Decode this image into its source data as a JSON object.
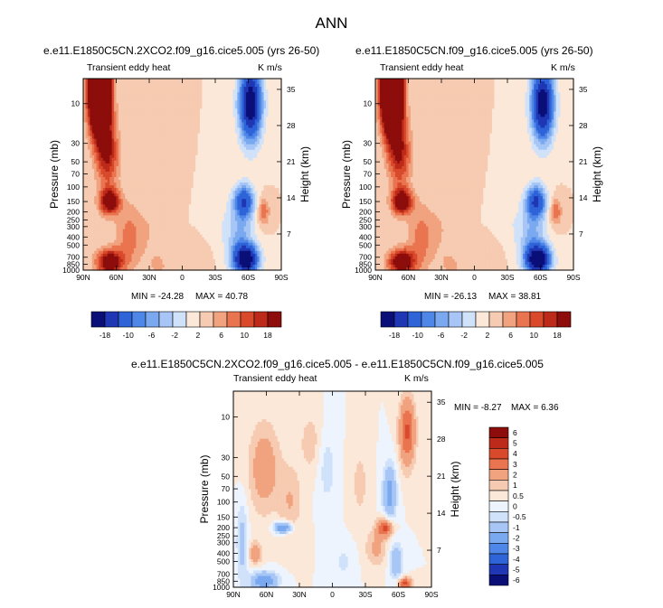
{
  "suptitle": "ANN",
  "colors": {
    "main": [
      "#0a0f78",
      "#1f37b4",
      "#2f63d8",
      "#4f87e8",
      "#7aa9f0",
      "#a7c6f5",
      "#d0e2fa",
      "#fbe8d8",
      "#f6cbb1",
      "#f1a27f",
      "#ea744f",
      "#d94a2c",
      "#bd2a19",
      "#8c0d0b"
    ],
    "diff": [
      "#0a0f78",
      "#1f37b4",
      "#2f63d8",
      "#4f87e8",
      "#7aa9f0",
      "#a7c6f5",
      "#d0e2fa",
      "#eef4fd",
      "#fbe8d8",
      "#f6cbb1",
      "#f1a27f",
      "#ea744f",
      "#d94a2c",
      "#bd2a19",
      "#8c0d0b"
    ]
  },
  "panels": [
    {
      "title": "e.e11.E1850C5CN.2XCO2.f09_g16.cice5.005 (yrs 26-50)",
      "left_label": "Transient eddy heat",
      "right_label": "K m/s",
      "min_label": "MIN = -24.28",
      "max_label": "MAX = 40.78"
    },
    {
      "title": "e.e11.E1850C5CN.f09_g16.cice5.005 (yrs 26-50)",
      "left_label": "Transient eddy heat",
      "right_label": "K m/s",
      "min_label": "MIN = -26.13",
      "max_label": "MAX = 38.81"
    },
    {
      "title": "e.e11.E1850C5CN.2XCO2.f09_g16.cice5.005 - e.e11.E1850C5CN.f09_g16.cice5.005",
      "left_label": "Transient eddy heat",
      "right_label": "K m/s",
      "min_label": "MIN = -8.27",
      "max_label": "MAX =  6.36"
    }
  ],
  "chart_data": [
    {
      "type": "heatmap",
      "title": "e.e11.E1850C5CN.2XCO2.f09_g16.cice5.005 (yrs 26-50)",
      "variable": "Transient eddy heat",
      "units": "K m/s",
      "xlabel": "",
      "ylabel": "Pressure (mb)",
      "ylabel_right": "Height (km)",
      "x_ticks": [
        "90N",
        "60N",
        "30N",
        "0",
        "30S",
        "60S",
        "90S"
      ],
      "y_ticks": [
        "10",
        "30",
        "50",
        "70",
        "100",
        "150",
        "200",
        "250",
        "300",
        "400",
        "500",
        "700",
        "850",
        "1000"
      ],
      "y_ticks_right": [
        "35",
        "28",
        "21",
        "14",
        "7"
      ],
      "ylim": [
        1000,
        5
      ],
      "min": -24.28,
      "max": 40.78,
      "colorbar_labels": [
        "-18",
        "-10",
        "-6",
        "-2",
        "2",
        "6",
        "10",
        "18"
      ],
      "features": [
        {
          "lat": 72,
          "p": 8,
          "value": 40
        },
        {
          "lat": 67,
          "p": 150,
          "value": 18
        },
        {
          "lat": 67,
          "p": 800,
          "value": 16
        },
        {
          "lat": -60,
          "p": 10,
          "value": -24
        },
        {
          "lat": -55,
          "p": 150,
          "value": -14
        },
        {
          "lat": -57,
          "p": 750,
          "value": -24
        },
        {
          "lat": -72,
          "p": 200,
          "value": 4
        }
      ]
    },
    {
      "type": "heatmap",
      "title": "e.e11.E1850C5CN.f09_g16.cice5.005 (yrs 26-50)",
      "variable": "Transient eddy heat",
      "units": "K m/s",
      "xlabel": "",
      "ylabel": "Pressure (mb)",
      "ylabel_right": "Height (km)",
      "x_ticks": [
        "90N",
        "60N",
        "30N",
        "0",
        "30S",
        "60S",
        "90S"
      ],
      "y_ticks": [
        "10",
        "30",
        "50",
        "70",
        "100",
        "150",
        "200",
        "250",
        "300",
        "400",
        "500",
        "700",
        "850",
        "1000"
      ],
      "y_ticks_right": [
        "35",
        "28",
        "21",
        "14",
        "7"
      ],
      "ylim": [
        1000,
        5
      ],
      "min": -26.13,
      "max": 38.81,
      "colorbar_labels": [
        "-18",
        "-10",
        "-6",
        "-2",
        "2",
        "6",
        "10",
        "18"
      ],
      "features": [
        {
          "lat": 72,
          "p": 8,
          "value": 38
        },
        {
          "lat": 67,
          "p": 150,
          "value": 16
        },
        {
          "lat": 67,
          "p": 800,
          "value": 15
        },
        {
          "lat": -60,
          "p": 10,
          "value": -26
        },
        {
          "lat": -55,
          "p": 150,
          "value": -15
        },
        {
          "lat": -57,
          "p": 750,
          "value": -25
        },
        {
          "lat": -72,
          "p": 200,
          "value": 4
        }
      ]
    },
    {
      "type": "heatmap",
      "title": "e.e11.E1850C5CN.2XCO2.f09_g16.cice5.005 - e.e11.E1850C5CN.f09_g16.cice5.005",
      "variable": "Transient eddy heat",
      "units": "K m/s",
      "xlabel": "",
      "ylabel": "Pressure (mb)",
      "ylabel_right": "Height (km)",
      "x_ticks": [
        "90N",
        "60N",
        "30N",
        "0",
        "30S",
        "60S",
        "90S"
      ],
      "y_ticks": [
        "10",
        "30",
        "50",
        "70",
        "100",
        "150",
        "200",
        "250",
        "300",
        "400",
        "500",
        "700",
        "850",
        "1000"
      ],
      "y_ticks_right": [
        "35",
        "28",
        "21",
        "14",
        "7"
      ],
      "ylim": [
        1000,
        5
      ],
      "min": -8.27,
      "max": 6.36,
      "colorbar_labels": [
        "6",
        "5",
        "4",
        "3",
        "2",
        "1",
        "0.5",
        "0",
        "-0.5",
        "-1",
        "-2",
        "-3",
        "-4",
        "-5",
        "-6"
      ],
      "features": [
        {
          "lat": 60,
          "p": 40,
          "value": 2
        },
        {
          "lat": 45,
          "p": 150,
          "value": 1
        },
        {
          "lat": -70,
          "p": 15,
          "value": 3
        },
        {
          "lat": -45,
          "p": 200,
          "value": 3
        },
        {
          "lat": -65,
          "p": 900,
          "value": 3
        },
        {
          "lat": -52,
          "p": 100,
          "value": -2
        },
        {
          "lat": 45,
          "p": 200,
          "value": -3
        },
        {
          "lat": 65,
          "p": 850,
          "value": -3
        },
        {
          "lat": 80,
          "p": 300,
          "value": -1
        }
      ]
    }
  ]
}
